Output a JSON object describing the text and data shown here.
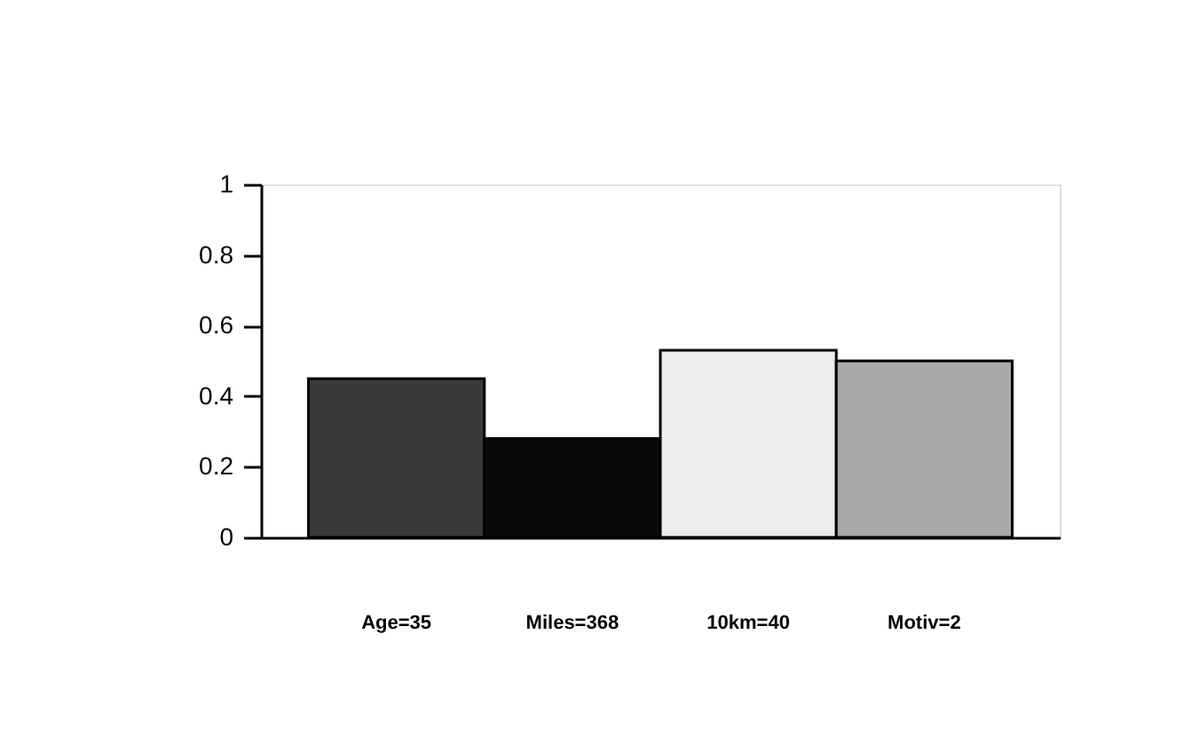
{
  "chart_data": {
    "type": "bar",
    "categories": [
      "Age=35",
      "Miles=368",
      "10km=40",
      "Motiv=2"
    ],
    "values": [
      0.45,
      0.28,
      0.53,
      0.5
    ],
    "colors": [
      "#3a3a3a",
      "#0a0a0a",
      "#ececec",
      "#a8a8a8"
    ],
    "ylim": [
      0,
      1
    ],
    "yticks": [
      0,
      0.2,
      0.4,
      0.6,
      0.8,
      1
    ],
    "grid": false
  }
}
